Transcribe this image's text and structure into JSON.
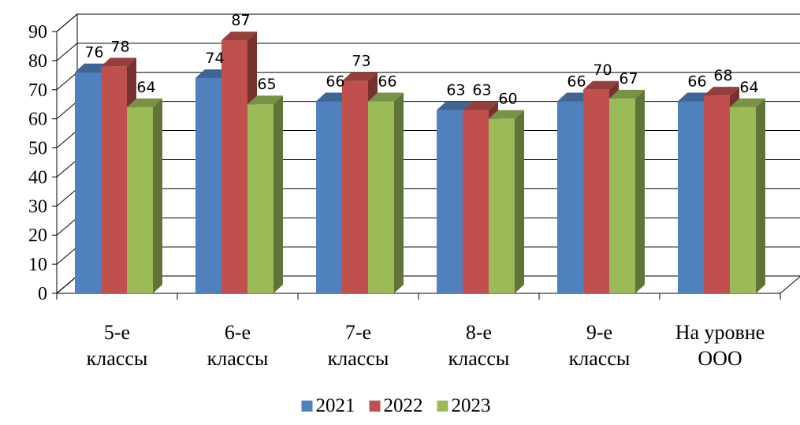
{
  "chart_data": {
    "type": "bar",
    "style": "3d-clustered-column",
    "categories": [
      [
        "5-е",
        "классы"
      ],
      [
        "6-е",
        "классы"
      ],
      [
        "7-е",
        "классы"
      ],
      [
        "8-е",
        "классы"
      ],
      [
        "9-е",
        "классы"
      ],
      [
        "На уровне",
        "ООО"
      ]
    ],
    "series": [
      {
        "name": "2021",
        "values": [
          76,
          74,
          66,
          63,
          66,
          66
        ],
        "color": "#4F81BD"
      },
      {
        "name": "2022",
        "values": [
          78,
          87,
          73,
          63,
          70,
          68
        ],
        "color": "#C0504D"
      },
      {
        "name": "2023",
        "values": [
          64,
          65,
          66,
          60,
          67,
          64
        ],
        "color": "#9BBB59"
      }
    ],
    "ylim": [
      0,
      90
    ],
    "yticks": [
      0,
      10,
      20,
      30,
      40,
      50,
      60,
      70,
      80,
      90
    ],
    "grid": true,
    "legend": "bottom",
    "data_labels": true
  }
}
